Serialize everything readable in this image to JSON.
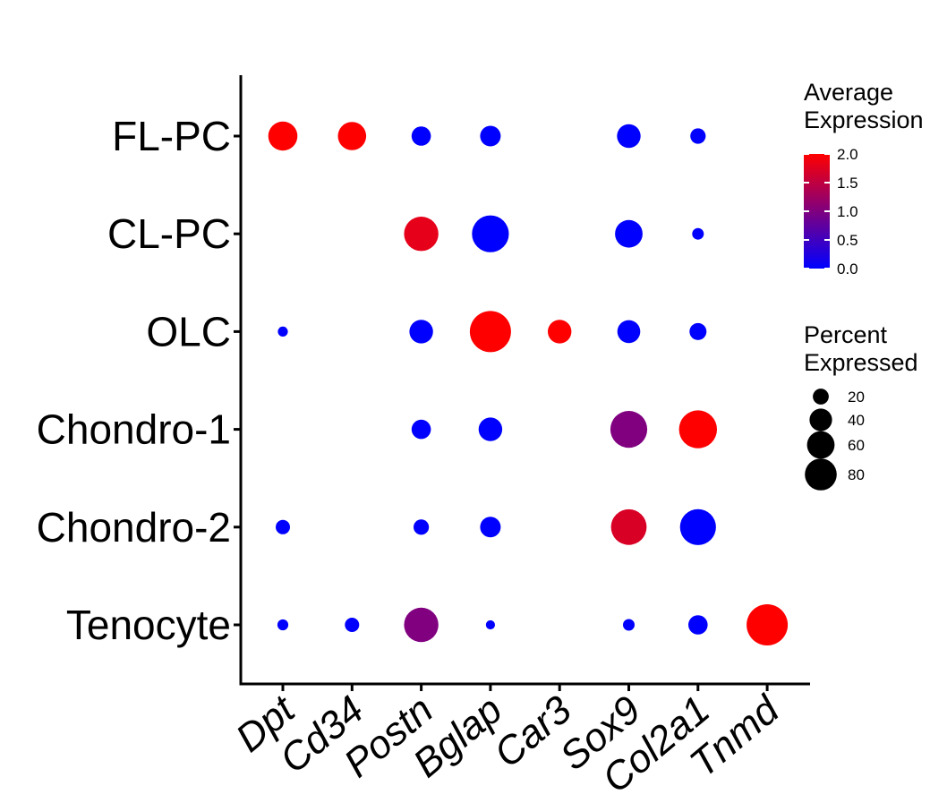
{
  "chart_data": {
    "type": "dot",
    "genes": [
      "Dpt",
      "Cd34",
      "Postn",
      "Bglap",
      "Car3",
      "Sox9",
      "Col2a1",
      "Tnmd"
    ],
    "cell_types": [
      "FL-PC",
      "CL-PC",
      "OLC",
      "Chondro-1",
      "Chondro-2",
      "Tenocyte"
    ],
    "points": [
      {
        "cell_type": "FL-PC",
        "gene": "Dpt",
        "avg_expression": 2.0,
        "pct_expressed": 50
      },
      {
        "cell_type": "FL-PC",
        "gene": "Cd34",
        "avg_expression": 2.0,
        "pct_expressed": 47
      },
      {
        "cell_type": "FL-PC",
        "gene": "Postn",
        "avg_expression": 0.0,
        "pct_expressed": 22
      },
      {
        "cell_type": "FL-PC",
        "gene": "Bglap",
        "avg_expression": 0.0,
        "pct_expressed": 25
      },
      {
        "cell_type": "FL-PC",
        "gene": "Sox9",
        "avg_expression": 0.0,
        "pct_expressed": 33
      },
      {
        "cell_type": "FL-PC",
        "gene": "Col2a1",
        "avg_expression": 0.0,
        "pct_expressed": 14
      },
      {
        "cell_type": "CL-PC",
        "gene": "Postn",
        "avg_expression": 1.8,
        "pct_expressed": 70
      },
      {
        "cell_type": "CL-PC",
        "gene": "Bglap",
        "avg_expression": 0.0,
        "pct_expressed": 80
      },
      {
        "cell_type": "CL-PC",
        "gene": "Sox9",
        "avg_expression": 0.0,
        "pct_expressed": 45
      },
      {
        "cell_type": "CL-PC",
        "gene": "Col2a1",
        "avg_expression": 0.0,
        "pct_expressed": 8
      },
      {
        "cell_type": "OLC",
        "gene": "Dpt",
        "avg_expression": 0.0,
        "pct_expressed": 6
      },
      {
        "cell_type": "OLC",
        "gene": "Postn",
        "avg_expression": 0.0,
        "pct_expressed": 33
      },
      {
        "cell_type": "OLC",
        "gene": "Bglap",
        "avg_expression": 2.0,
        "pct_expressed": 100
      },
      {
        "cell_type": "OLC",
        "gene": "Car3",
        "avg_expression": 2.0,
        "pct_expressed": 33
      },
      {
        "cell_type": "OLC",
        "gene": "Sox9",
        "avg_expression": 0.0,
        "pct_expressed": 31
      },
      {
        "cell_type": "OLC",
        "gene": "Col2a1",
        "avg_expression": 0.0,
        "pct_expressed": 17
      },
      {
        "cell_type": "Chondro-1",
        "gene": "Postn",
        "avg_expression": 0.0,
        "pct_expressed": 22
      },
      {
        "cell_type": "Chondro-1",
        "gene": "Bglap",
        "avg_expression": 0.0,
        "pct_expressed": 33
      },
      {
        "cell_type": "Chondro-1",
        "gene": "Sox9",
        "avg_expression": 1.0,
        "pct_expressed": 80
      },
      {
        "cell_type": "Chondro-1",
        "gene": "Col2a1",
        "avg_expression": 2.0,
        "pct_expressed": 85
      },
      {
        "cell_type": "Chondro-2",
        "gene": "Dpt",
        "avg_expression": 0.0,
        "pct_expressed": 12
      },
      {
        "cell_type": "Chondro-2",
        "gene": "Postn",
        "avg_expression": 0.0,
        "pct_expressed": 14
      },
      {
        "cell_type": "Chondro-2",
        "gene": "Bglap",
        "avg_expression": 0.0,
        "pct_expressed": 25
      },
      {
        "cell_type": "Chondro-2",
        "gene": "Sox9",
        "avg_expression": 1.7,
        "pct_expressed": 75
      },
      {
        "cell_type": "Chondro-2",
        "gene": "Col2a1",
        "avg_expression": 0.0,
        "pct_expressed": 76
      },
      {
        "cell_type": "Tenocyte",
        "gene": "Dpt",
        "avg_expression": 0.0,
        "pct_expressed": 7
      },
      {
        "cell_type": "Tenocyte",
        "gene": "Cd34",
        "avg_expression": 0.0,
        "pct_expressed": 12
      },
      {
        "cell_type": "Tenocyte",
        "gene": "Postn",
        "avg_expression": 1.0,
        "pct_expressed": 70
      },
      {
        "cell_type": "Tenocyte",
        "gene": "Bglap",
        "avg_expression": 0.0,
        "pct_expressed": 5
      },
      {
        "cell_type": "Tenocyte",
        "gene": "Sox9",
        "avg_expression": 0.0,
        "pct_expressed": 8
      },
      {
        "cell_type": "Tenocyte",
        "gene": "Col2a1",
        "avg_expression": 0.0,
        "pct_expressed": 22
      },
      {
        "cell_type": "Tenocyte",
        "gene": "Tnmd",
        "avg_expression": 2.0,
        "pct_expressed": 100
      }
    ],
    "color_legend": {
      "title": "Average Expression",
      "title_lines": [
        "Average",
        "Expression"
      ],
      "range": [
        0.0,
        2.0
      ],
      "ticks": [
        "2.0",
        "1.5",
        "1.0",
        "0.5",
        "0.0"
      ],
      "low_color": "#0000ff",
      "high_color": "#ff0000"
    },
    "size_legend": {
      "title": "Percent Expressed",
      "title_lines": [
        "Percent",
        "Expressed"
      ],
      "ticks": [
        "20",
        "40",
        "60",
        "80"
      ],
      "values": [
        20,
        40,
        60,
        80
      ]
    },
    "legend_placement": "right"
  }
}
